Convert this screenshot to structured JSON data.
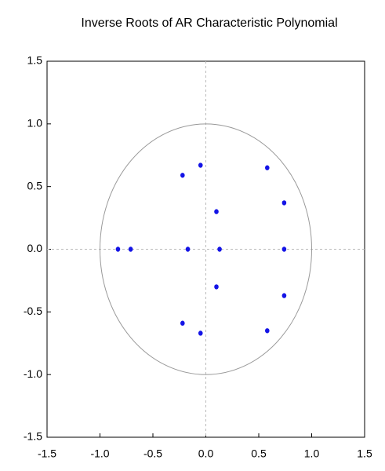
{
  "chart_data": {
    "type": "scatter",
    "title": "Inverse Roots of AR Characteristic Polynomial",
    "x": [
      -0.22,
      -0.05,
      0.58,
      0.74,
      0.1,
      -0.83,
      -0.71,
      -0.17,
      0.13,
      0.74,
      0.1,
      0.74,
      -0.22,
      -0.05,
      0.58
    ],
    "values": [
      0.59,
      0.67,
      0.65,
      0.37,
      0.3,
      0.0,
      0.0,
      0.0,
      0.0,
      0.0,
      -0.3,
      -0.37,
      -0.59,
      -0.67,
      -0.65
    ],
    "color": "#1414e6",
    "xlim": [
      -1.5,
      1.5
    ],
    "ylim": [
      -1.5,
      1.5
    ],
    "xticks": [
      -1.5,
      {
        "value": -1,
        "label": "-1.0"
      },
      -0.5,
      {
        "value": 0,
        "label": "0.0"
      },
      0.5,
      {
        "value": 1,
        "label": "1.0"
      },
      1.5
    ],
    "yticks": [
      -1.5,
      {
        "value": -1,
        "label": "-1.0"
      },
      -0.5,
      {
        "value": 0,
        "label": "0.0"
      },
      0.5,
      {
        "value": 1,
        "label": "1.0"
      },
      1.5
    ],
    "unit_circle": true,
    "zero_lines": true
  }
}
